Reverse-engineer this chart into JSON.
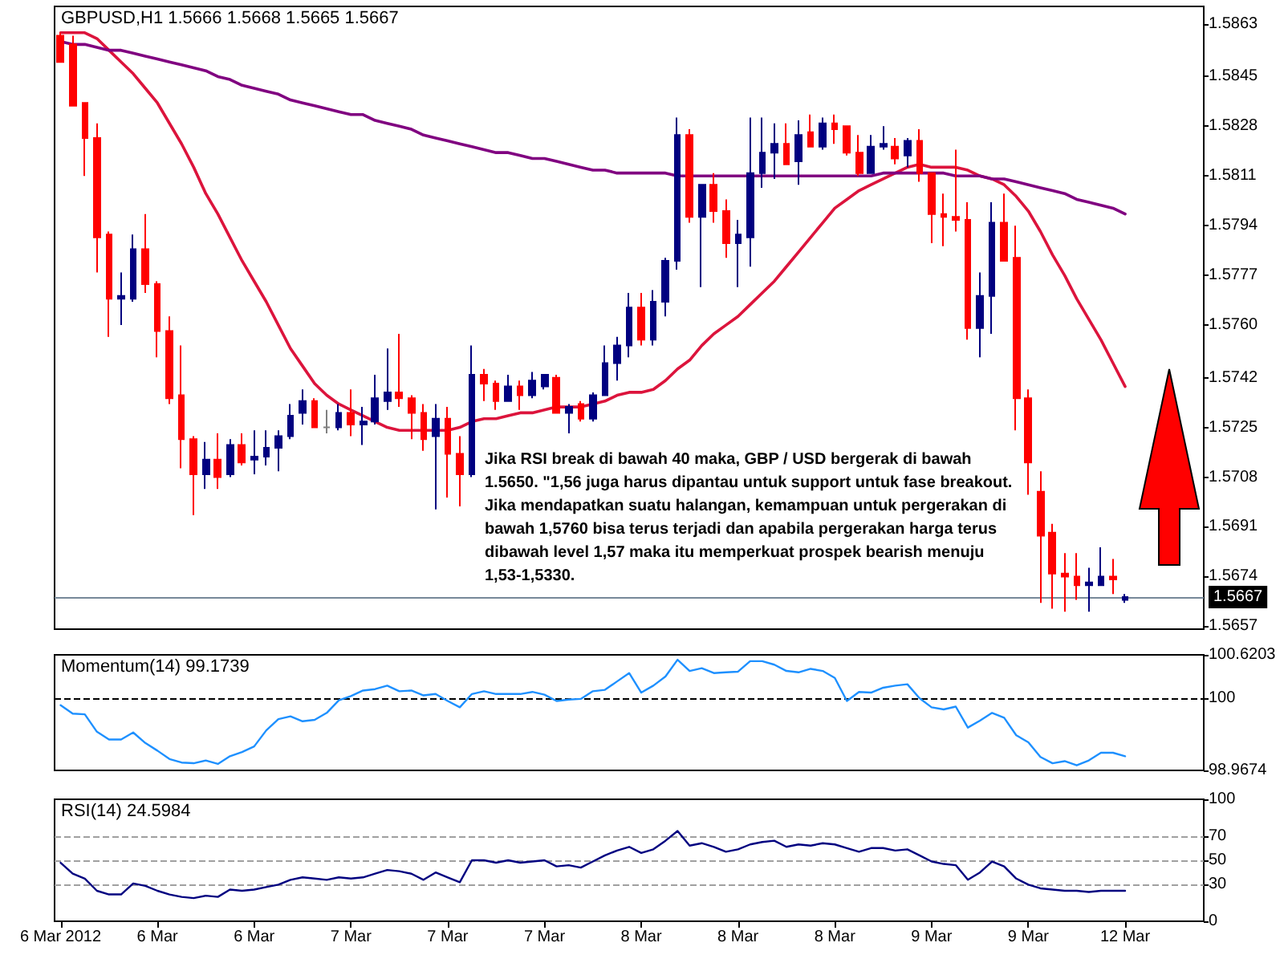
{
  "chart_data": [
    {
      "type": "candlestick",
      "title": "GBPUSD,H1 1.5666 1.5668 1.5665 1.5667",
      "categories": [
        null,
        null,
        null,
        null,
        null,
        null,
        null,
        null,
        null,
        null,
        null,
        null,
        null,
        null,
        null,
        null,
        null,
        null,
        null,
        null,
        null,
        null,
        null,
        null,
        null,
        null,
        null,
        null,
        null,
        null,
        null,
        null,
        null,
        null,
        null,
        null,
        null,
        null,
        null,
        null,
        null,
        null,
        null,
        null,
        null,
        null,
        null,
        null,
        null,
        null,
        null,
        null,
        null,
        null,
        null,
        null,
        null,
        null,
        null,
        null,
        null,
        null,
        null,
        null,
        null,
        null,
        null,
        null,
        null,
        null,
        null,
        null,
        null,
        null,
        null,
        null,
        null,
        null,
        null,
        null,
        null,
        null,
        null,
        null,
        null,
        null,
        null,
        null,
        null
      ],
      "ohlc": [
        [
          1.5859,
          1.586,
          1.585,
          1.585
        ],
        [
          1.5856,
          1.5859,
          1.5835,
          1.5835
        ],
        [
          1.5836,
          1.5836,
          1.5811,
          1.5824
        ],
        [
          1.5824,
          1.5829,
          1.5778,
          1.579
        ],
        [
          1.5791,
          1.5792,
          1.5756,
          1.5769
        ],
        [
          1.5769,
          1.5778,
          1.576,
          1.577
        ],
        [
          1.5769,
          1.5791,
          1.5768,
          1.5786
        ],
        [
          1.5786,
          1.5798,
          1.5771,
          1.5774
        ],
        [
          1.5774,
          1.5775,
          1.5749,
          1.5758
        ],
        [
          1.5758,
          1.5763,
          1.5733,
          1.5735
        ],
        [
          1.5736,
          1.5753,
          1.5711,
          1.5721
        ],
        [
          1.5721,
          1.5722,
          1.5695,
          1.5709
        ],
        [
          1.5709,
          1.572,
          1.5704,
          1.5714
        ],
        [
          1.5714,
          1.5723,
          1.5704,
          1.5708
        ],
        [
          1.5709,
          1.5721,
          1.5708,
          1.5719
        ],
        [
          1.5719,
          1.5723,
          1.5712,
          1.5713
        ],
        [
          1.5714,
          1.5724,
          1.5709,
          1.5715
        ],
        [
          1.5715,
          1.5724,
          1.5712,
          1.5718
        ],
        [
          1.5718,
          1.5724,
          1.571,
          1.5722
        ],
        [
          1.5722,
          1.5733,
          1.5721,
          1.5729
        ],
        [
          1.573,
          1.5738,
          1.5726,
          1.5734
        ],
        [
          1.5734,
          1.5735,
          1.5725,
          1.5725
        ],
        [
          1.5725,
          1.5731,
          1.5723,
          1.5725
        ],
        [
          1.5725,
          1.5733,
          1.5724,
          1.573
        ],
        [
          1.573,
          1.5738,
          1.5722,
          1.5726
        ],
        [
          1.5726,
          1.5732,
          1.5719,
          1.5727
        ],
        [
          1.5727,
          1.5743,
          1.5726,
          1.5735
        ],
        [
          1.5734,
          1.5752,
          1.5731,
          1.5737
        ],
        [
          1.5737,
          1.5757,
          1.5732,
          1.5735
        ],
        [
          1.5735,
          1.5736,
          1.5721,
          1.573
        ],
        [
          1.573,
          1.5733,
          1.5717,
          1.5721
        ],
        [
          1.5722,
          1.5733,
          1.5697,
          1.5728
        ],
        [
          1.5728,
          1.5732,
          1.5701,
          1.5716
        ],
        [
          1.5716,
          1.5722,
          1.5698,
          1.5709
        ],
        [
          1.5709,
          1.5753,
          1.5708,
          1.5743
        ],
        [
          1.5743,
          1.5745,
          1.5734,
          1.574
        ],
        [
          1.574,
          1.5741,
          1.5731,
          1.5734
        ],
        [
          1.5734,
          1.5743,
          1.5734,
          1.5739
        ],
        [
          1.5739,
          1.5741,
          1.5731,
          1.5736
        ],
        [
          1.5736,
          1.5744,
          1.5735,
          1.5741
        ],
        [
          1.5739,
          1.5743,
          1.5738,
          1.5743
        ],
        [
          1.5742,
          1.5743,
          1.573,
          1.573
        ],
        [
          1.573,
          1.5733,
          1.5723,
          1.5732
        ],
        [
          1.5733,
          1.5734,
          1.5727,
          1.5728
        ],
        [
          1.5728,
          1.5737,
          1.5727,
          1.5736
        ],
        [
          1.5736,
          1.5753,
          1.5736,
          1.5747
        ],
        [
          1.5747,
          1.5756,
          1.5741,
          1.5753
        ],
        [
          1.5753,
          1.5771,
          1.5749,
          1.5766
        ],
        [
          1.5766,
          1.5771,
          1.5753,
          1.5755
        ],
        [
          1.5755,
          1.5772,
          1.5753,
          1.5768
        ],
        [
          1.5768,
          1.5783,
          1.5763,
          1.5782
        ],
        [
          1.5782,
          1.5831,
          1.5779,
          1.5825
        ],
        [
          1.5825,
          1.5827,
          1.5795,
          1.5797
        ],
        [
          1.5797,
          1.5808,
          1.5773,
          1.5808
        ],
        [
          1.5808,
          1.5812,
          1.5795,
          1.5799
        ],
        [
          1.5799,
          1.5803,
          1.5783,
          1.5788
        ],
        [
          1.5788,
          1.5796,
          1.5773,
          1.5791
        ],
        [
          1.579,
          1.5831,
          1.578,
          1.5812
        ],
        [
          1.5812,
          1.5831,
          1.5807,
          1.5819
        ],
        [
          1.5819,
          1.5829,
          1.581,
          1.5822
        ],
        [
          1.5822,
          1.5829,
          1.5815,
          1.5815
        ],
        [
          1.5816,
          1.583,
          1.5808,
          1.5825
        ],
        [
          1.5826,
          1.5832,
          1.5821,
          1.5821
        ],
        [
          1.5821,
          1.5831,
          1.582,
          1.5829
        ],
        [
          1.5829,
          1.5832,
          1.5822,
          1.5827
        ],
        [
          1.5828,
          1.5828,
          1.5818,
          1.5819
        ],
        [
          1.5819,
          1.5825,
          1.5811,
          1.5812
        ],
        [
          1.5812,
          1.5825,
          1.5812,
          1.5821
        ],
        [
          1.5821,
          1.5828,
          1.582,
          1.5822
        ],
        [
          1.5821,
          1.5824,
          1.5815,
          1.5817
        ],
        [
          1.5818,
          1.5824,
          1.5814,
          1.5823
        ],
        [
          1.5823,
          1.5827,
          1.5809,
          1.5812
        ],
        [
          1.5812,
          1.5812,
          1.5788,
          1.5798
        ],
        [
          1.5798,
          1.5805,
          1.5787,
          1.5797
        ],
        [
          1.5797,
          1.582,
          1.5792,
          1.5796
        ],
        [
          1.5796,
          1.5802,
          1.5755,
          1.5759
        ],
        [
          1.5759,
          1.5778,
          1.5749,
          1.577
        ],
        [
          1.577,
          1.5802,
          1.5757,
          1.5795
        ],
        [
          1.5795,
          1.5805,
          1.5782,
          1.5782
        ],
        [
          1.5783,
          1.5794,
          1.5724,
          1.5735
        ],
        [
          1.5735,
          1.5738,
          1.5702,
          1.5713
        ],
        [
          1.5703,
          1.571,
          1.5665,
          1.5688
        ],
        [
          1.5689,
          1.5692,
          1.5663,
          1.5675
        ],
        [
          1.5675,
          1.5682,
          1.5662,
          1.5674
        ],
        [
          1.5674,
          1.5682,
          1.5666,
          1.5671
        ],
        [
          1.5671,
          1.5677,
          1.5662,
          1.5672
        ],
        [
          1.5671,
          1.5684,
          1.5671,
          1.5674
        ],
        [
          1.5674,
          1.568,
          1.5668,
          1.5673
        ],
        [
          1.5666,
          1.5668,
          1.5665,
          1.5667
        ]
      ],
      "colors": [
        "#ff0000",
        "#ff0000",
        "#ff0000",
        "#ff0000",
        "#ff0000",
        "#000080",
        "#000080",
        "#ff0000",
        "#ff0000",
        "#ff0000",
        "#ff0000",
        "#ff0000",
        "#000080",
        "#ff0000",
        "#000080",
        "#ff0000",
        "#000080",
        "#000080",
        "#000080",
        "#000080",
        "#000080",
        "#ff0000",
        "#808080",
        "#000080",
        "#ff0000",
        "#000080",
        "#000080",
        "#000080",
        "#ff0000",
        "#ff0000",
        "#ff0000",
        "#000080",
        "#ff0000",
        "#ff0000",
        "#000080",
        "#ff0000",
        "#ff0000",
        "#000080",
        "#ff0000",
        "#000080",
        "#000080",
        "#ff0000",
        "#000080",
        "#ff0000",
        "#000080",
        "#000080",
        "#000080",
        "#000080",
        "#ff0000",
        "#000080",
        "#000080",
        "#000080",
        "#ff0000",
        "#000080",
        "#ff0000",
        "#ff0000",
        "#000080",
        "#000080",
        "#000080",
        "#000080",
        "#ff0000",
        "#000080",
        "#ff0000",
        "#000080",
        "#ff0000",
        "#ff0000",
        "#ff0000",
        "#000080",
        "#000080",
        "#ff0000",
        "#000080",
        "#ff0000",
        "#ff0000",
        "#ff0000",
        "#ff0000",
        "#ff0000",
        "#000080",
        "#000080",
        "#ff0000",
        "#ff0000",
        "#ff0000",
        "#ff0000",
        "#ff0000",
        "#ff0000",
        "#ff0000",
        "#000080",
        "#000080",
        "#ff0000",
        "#000080"
      ],
      "series": [
        {
          "type": "line",
          "color": "#dc143c",
          "values": [
            1.586,
            1.586,
            1.586,
            1.5858,
            1.5854,
            1.585,
            1.5846,
            1.5841,
            1.5836,
            1.5829,
            1.5822,
            1.5814,
            1.5805,
            1.5798,
            1.579,
            1.5782,
            1.5775,
            1.5768,
            1.576,
            1.5752,
            1.5746,
            1.574,
            1.5736,
            1.5733,
            1.5731,
            1.5729,
            1.5727,
            1.5725,
            1.5724,
            1.5724,
            1.5724,
            1.5724,
            1.5724,
            1.5725,
            1.5727,
            1.5728,
            1.5728,
            1.5729,
            1.573,
            1.573,
            1.5731,
            1.5732,
            1.5732,
            1.5732,
            1.5733,
            1.5734,
            1.5736,
            1.5737,
            1.5737,
            1.5738,
            1.5741,
            1.5745,
            1.5748,
            1.5753,
            1.5757,
            1.576,
            1.5763,
            1.5767,
            1.5771,
            1.5775,
            1.578,
            1.5785,
            1.579,
            1.5795,
            1.58,
            1.5803,
            1.5806,
            1.5808,
            1.581,
            1.5812,
            1.5814,
            1.5815,
            1.5814,
            1.5814,
            1.5814,
            1.5813,
            1.5811,
            1.581,
            1.5808,
            1.5804,
            1.5799,
            1.5792,
            1.5784,
            1.5777,
            1.5769,
            1.5762,
            1.5755,
            1.5747,
            1.5739
          ]
        },
        {
          "type": "line",
          "color": "#800080",
          "values": [
            1.5857,
            1.5856,
            1.5856,
            1.5855,
            1.5854,
            1.5854,
            1.5853,
            1.5852,
            1.5851,
            1.585,
            1.5849,
            1.5848,
            1.5847,
            1.5845,
            1.5844,
            1.5842,
            1.5841,
            1.584,
            1.5839,
            1.5837,
            1.5836,
            1.5835,
            1.5834,
            1.5833,
            1.5832,
            1.5832,
            1.583,
            1.5829,
            1.5828,
            1.5827,
            1.5825,
            1.5824,
            1.5823,
            1.5822,
            1.5821,
            1.582,
            1.5819,
            1.5819,
            1.5818,
            1.5817,
            1.5817,
            1.5816,
            1.5815,
            1.5814,
            1.5813,
            1.5813,
            1.5812,
            1.5812,
            1.5812,
            1.5812,
            1.5812,
            1.5811,
            1.5811,
            1.5811,
            1.5811,
            1.5811,
            1.5811,
            1.5811,
            1.5811,
            1.5811,
            1.5811,
            1.5811,
            1.5811,
            1.5811,
            1.5811,
            1.5811,
            1.5811,
            1.5811,
            1.5812,
            1.5812,
            1.5812,
            1.5812,
            1.5812,
            1.5812,
            1.5811,
            1.5811,
            1.5811,
            1.581,
            1.581,
            1.5809,
            1.5808,
            1.5807,
            1.5806,
            1.5805,
            1.5803,
            1.5802,
            1.5801,
            1.58,
            1.5798
          ]
        }
      ],
      "marker": "none",
      "ylim": [
        1.5656,
        1.5869
      ],
      "yticks": [
        1.5657,
        1.5674,
        1.5691,
        1.5708,
        1.5725,
        1.5742,
        {
          "value": 1.576,
          "label": "1.5760"
        },
        1.5777,
        1.5794,
        1.5811,
        1.5828,
        1.5845,
        1.5863
      ],
      "ref_lines": [
        {
          "axis": "y",
          "value": 1.5667,
          "label": "1.5667",
          "color": "#778899"
        }
      ],
      "annotations": [
        "Jika RSI break di bawah 40 maka, GBP / USD bergerak di bawah 1.5650. \"1,56 juga harus dipantau untuk support untuk fase breakout. Jika mendapatkan suatu halangan, kemampuan untuk pergerakan di bawah 1,5760 bisa terus terjadi dan apabila pergerakan harga terus dibawah level 1,57 maka itu memperkuat prospek bearish menuju 1,53-1,5330."
      ],
      "tick_labels": "y"
    },
    {
      "type": "line",
      "title": "Momentum(14) 99.1739",
      "categories": [
        null,
        null,
        null,
        null,
        null,
        null,
        null,
        null,
        null,
        null,
        null,
        null,
        null,
        null,
        null,
        null,
        null,
        null,
        null,
        null,
        null,
        null,
        null,
        null,
        null,
        null,
        null,
        null,
        null,
        null,
        null,
        null,
        null,
        null,
        null,
        null,
        null,
        null,
        null,
        null,
        null,
        null,
        null,
        null,
        null,
        null,
        null,
        null,
        null,
        null,
        null,
        null,
        null,
        null,
        null,
        null,
        null,
        null,
        null,
        null,
        null,
        null,
        null,
        null,
        null,
        null,
        null,
        null,
        null,
        null,
        null,
        null,
        null,
        null,
        null,
        null,
        null,
        null,
        null,
        null,
        null,
        null,
        null,
        null,
        null,
        null,
        null,
        null,
        null
      ],
      "values": [
        99.9,
        99.78,
        99.77,
        99.52,
        99.41,
        99.41,
        99.51,
        99.36,
        99.25,
        99.13,
        99.08,
        99.07,
        99.11,
        99.06,
        99.17,
        99.23,
        99.31,
        99.54,
        99.7,
        99.74,
        99.67,
        99.69,
        99.79,
        99.97,
        100.03,
        100.11,
        100.13,
        100.18,
        100.1,
        100.11,
        100.04,
        100.06,
        99.96,
        99.87,
        100.06,
        100.1,
        100.06,
        100.06,
        100.06,
        100.09,
        100.05,
        99.96,
        99.98,
        99.99,
        100.1,
        100.12,
        100.24,
        100.36,
        100.08,
        100.18,
        100.31,
        100.55,
        100.39,
        100.43,
        100.36,
        100.37,
        100.38,
        100.53,
        100.53,
        100.48,
        100.39,
        100.37,
        100.42,
        100.39,
        100.29,
        99.96,
        100.09,
        100.08,
        100.15,
        100.18,
        100.2,
        100.0,
        99.87,
        99.84,
        99.88,
        99.58,
        99.68,
        99.79,
        99.72,
        99.47,
        99.37,
        99.16,
        99.07,
        99.1,
        99.04,
        99.11,
        99.22,
        99.22,
        99.17
      ],
      "color": "#1e90ff",
      "marker": "none",
      "ylim": [
        98.9674,
        100.6203
      ],
      "yticks": [
        98.9674,
        100,
        100.6203
      ],
      "ref_lines": [
        {
          "axis": "y",
          "value": 100,
          "color": "#000000",
          "line_style": "dashed"
        }
      ],
      "tick_labels": "y"
    },
    {
      "type": "line",
      "title": "RSI(14) 24.5984",
      "categories": [
        "6 Mar 2012",
        null,
        null,
        null,
        null,
        null,
        null,
        null,
        "6 Mar",
        null,
        null,
        null,
        null,
        null,
        null,
        null,
        "6 Mar",
        null,
        null,
        null,
        null,
        null,
        null,
        null,
        "7 Mar",
        null,
        null,
        null,
        null,
        null,
        null,
        null,
        "7 Mar",
        null,
        null,
        null,
        null,
        null,
        null,
        null,
        "7 Mar",
        null,
        null,
        null,
        null,
        null,
        null,
        null,
        "8 Mar",
        null,
        null,
        null,
        null,
        null,
        null,
        null,
        "8 Mar",
        null,
        null,
        null,
        null,
        null,
        null,
        null,
        "8 Mar",
        null,
        null,
        null,
        null,
        null,
        null,
        null,
        "9 Mar",
        null,
        null,
        null,
        null,
        null,
        null,
        null,
        "9 Mar",
        null,
        null,
        null,
        null,
        null,
        null,
        null,
        "12 Mar"
      ],
      "values": [
        48,
        39,
        35,
        25,
        22,
        22,
        31,
        29,
        25,
        22,
        20,
        19,
        21,
        20,
        26,
        25,
        26,
        28,
        30,
        34,
        36,
        35,
        34,
        36,
        35,
        36,
        39,
        42,
        41,
        39,
        34,
        40,
        36,
        32,
        50,
        50,
        48,
        50,
        48,
        49,
        50,
        45,
        46,
        44,
        49,
        54,
        58,
        61,
        56,
        59,
        66,
        74,
        62,
        64,
        61,
        57,
        59,
        63,
        65,
        66,
        61,
        63,
        62,
        64,
        63,
        60,
        57,
        60,
        60,
        58,
        59,
        54,
        49,
        47,
        46,
        34,
        40,
        49,
        45,
        35,
        30,
        27,
        26,
        25,
        25,
        24,
        25,
        25,
        25
      ],
      "color": "#000080",
      "marker": "none",
      "ylim": [
        0,
        100
      ],
      "yticks": [
        0,
        30,
        50,
        70,
        100
      ],
      "ref_lines": [
        {
          "axis": "y",
          "value": 70,
          "color": "#a0a0a0",
          "line_style": "dashed"
        },
        {
          "axis": "y",
          "value": 50,
          "color": "#a0a0a0",
          "line_style": "dashed"
        },
        {
          "axis": "y",
          "value": 30,
          "color": "#a0a0a0",
          "line_style": "dashed"
        }
      ]
    }
  ]
}
